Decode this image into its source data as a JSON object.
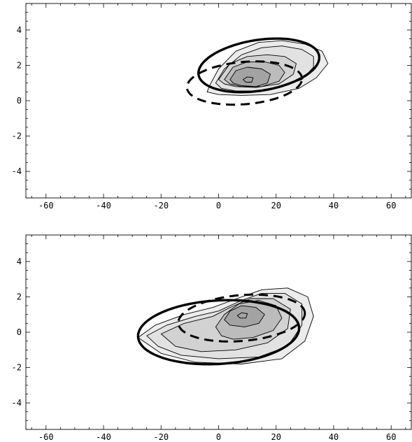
{
  "chart_data": [
    {
      "type": "contour",
      "xlabel": "",
      "ylabel": "",
      "xlim": [
        -67,
        67
      ],
      "ylim": [
        -5.5,
        5.5
      ],
      "x_ticks": [
        -60,
        -40,
        -20,
        0,
        20,
        40,
        60
      ],
      "y_ticks": [
        -4,
        -2,
        0,
        2,
        4
      ],
      "x_tick_labels": [
        "-60",
        "-40",
        "-20",
        "0",
        "20",
        "40",
        "60"
      ],
      "y_tick_labels": [
        "-4",
        "-2",
        "0",
        "2",
        "4"
      ],
      "contour_levels": [
        {
          "fill": "#ececec",
          "points": [
            [
              -3,
              0.9
            ],
            [
              0,
              1.8
            ],
            [
              6,
              2.8
            ],
            [
              14,
              3.3
            ],
            [
              22,
              3.4
            ],
            [
              30,
              3.2
            ],
            [
              36,
              2.8
            ],
            [
              38,
              2.1
            ],
            [
              34,
              1.3
            ],
            [
              28,
              0.7
            ],
            [
              18,
              0.35
            ],
            [
              8,
              0.3
            ],
            [
              0,
              0.35
            ],
            [
              -4,
              0.5
            ]
          ]
        },
        {
          "fill": "#e2e2e2",
          "points": [
            [
              -1,
              1.0
            ],
            [
              2,
              1.8
            ],
            [
              8,
              2.6
            ],
            [
              15,
              3.0
            ],
            [
              22,
              3.1
            ],
            [
              29,
              2.9
            ],
            [
              33,
              2.5
            ],
            [
              33,
              1.9
            ],
            [
              29,
              1.2
            ],
            [
              22,
              0.8
            ],
            [
              14,
              0.55
            ],
            [
              6,
              0.55
            ],
            [
              1,
              0.7
            ]
          ]
        },
        {
          "fill": "#d2d2d2",
          "points": [
            [
              0,
              1.2
            ],
            [
              4,
              2.1
            ],
            [
              10,
              2.5
            ],
            [
              17,
              2.6
            ],
            [
              23,
              2.5
            ],
            [
              27,
              2.1
            ],
            [
              26,
              1.5
            ],
            [
              21,
              0.95
            ],
            [
              13,
              0.75
            ],
            [
              6,
              0.8
            ],
            [
              2,
              0.95
            ]
          ]
        },
        {
          "fill": "#bcbcbc",
          "points": [
            [
              2,
              1.2
            ],
            [
              5,
              1.9
            ],
            [
              10,
              2.2
            ],
            [
              16,
              2.2
            ],
            [
              21,
              2.0
            ],
            [
              23,
              1.6
            ],
            [
              21,
              1.1
            ],
            [
              15,
              0.8
            ],
            [
              8,
              0.8
            ],
            [
              4,
              0.95
            ]
          ]
        },
        {
          "fill": "#a3a3a3",
          "points": [
            [
              4,
              1.2
            ],
            [
              6,
              1.7
            ],
            [
              10,
              1.9
            ],
            [
              15,
              1.8
            ],
            [
              18,
              1.5
            ],
            [
              17,
              1.0
            ],
            [
              13,
              0.8
            ],
            [
              8,
              0.85
            ],
            [
              5,
              1.0
            ]
          ]
        },
        {
          "fill": "#a3a3a3",
          "points": [
            [
              8.5,
              1.2
            ],
            [
              10,
              1.35
            ],
            [
              12,
              1.3
            ],
            [
              11.5,
              1.05
            ],
            [
              9.5,
              1.05
            ]
          ]
        }
      ],
      "solid_ellipse": {
        "center": [
          14,
          2.0
        ],
        "rx": 21,
        "ry": 1.45,
        "tilt_slope": 0.021
      },
      "dashed_ellipse": {
        "center": [
          9,
          1.0
        ],
        "rx": 20,
        "ry": 1.2,
        "tilt_slope": 0.012
      }
    },
    {
      "type": "contour",
      "xlabel": "",
      "ylabel": "",
      "xlim": [
        -67,
        67
      ],
      "ylim": [
        -5.5,
        5.5
      ],
      "x_ticks": [
        -60,
        -40,
        -20,
        0,
        20,
        40,
        60
      ],
      "y_ticks": [
        -4,
        -2,
        0,
        2,
        4
      ],
      "x_tick_labels": [
        "-60",
        "-40",
        "-20",
        "0",
        "20",
        "40",
        "60"
      ],
      "y_tick_labels": [
        "-4",
        "-2",
        "0",
        "2",
        "4"
      ],
      "contour_levels": [
        {
          "fill": "#ececec",
          "points": [
            [
              -28,
              -0.3
            ],
            [
              -22,
              0.4
            ],
            [
              -12,
              1.0
            ],
            [
              -2,
              1.4
            ],
            [
              8,
              2.0
            ],
            [
              15,
              2.4
            ],
            [
              24,
              2.5
            ],
            [
              31,
              2.0
            ],
            [
              33,
              0.9
            ],
            [
              30,
              -0.5
            ],
            [
              22,
              -1.5
            ],
            [
              8,
              -1.8
            ],
            [
              -8,
              -1.7
            ],
            [
              -20,
              -1.2
            ]
          ]
        },
        {
          "fill": "#e2e2e2",
          "points": [
            [
              -25,
              -0.2
            ],
            [
              -18,
              0.4
            ],
            [
              -8,
              0.9
            ],
            [
              0,
              1.2
            ],
            [
              8,
              1.8
            ],
            [
              15,
              2.2
            ],
            [
              23,
              2.2
            ],
            [
              29,
              1.6
            ],
            [
              29,
              0.4
            ],
            [
              24,
              -0.8
            ],
            [
              14,
              -1.4
            ],
            [
              0,
              -1.5
            ],
            [
              -13,
              -1.3
            ],
            [
              -21,
              -0.8
            ]
          ]
        },
        {
          "fill": "#d2d2d2",
          "points": [
            [
              -20,
              -0.1
            ],
            [
              -12,
              0.5
            ],
            [
              -2,
              0.9
            ],
            [
              4,
              1.4
            ],
            [
              11,
              1.9
            ],
            [
              19,
              1.9
            ],
            [
              25,
              1.3
            ],
            [
              24,
              0.2
            ],
            [
              17,
              -0.6
            ],
            [
              6,
              -1.0
            ],
            [
              -6,
              -1.1
            ],
            [
              -15,
              -0.8
            ]
          ]
        },
        {
          "fill": "#bcbcbc",
          "points": [
            [
              -1,
              0.3
            ],
            [
              2,
              1.0
            ],
            [
              7,
              1.6
            ],
            [
              14,
              1.8
            ],
            [
              20,
              1.5
            ],
            [
              22,
              0.8
            ],
            [
              19,
              0.1
            ],
            [
              12,
              -0.3
            ],
            [
              5,
              -0.4
            ],
            [
              1,
              -0.2
            ]
          ]
        },
        {
          "fill": "#a3a3a3",
          "points": [
            [
              2,
              0.7
            ],
            [
              4,
              1.2
            ],
            [
              8,
              1.5
            ],
            [
              13,
              1.4
            ],
            [
              16,
              1.0
            ],
            [
              14,
              0.5
            ],
            [
              9,
              0.3
            ],
            [
              4,
              0.4
            ]
          ]
        },
        {
          "fill": "#a3a3a3",
          "points": [
            [
              6.5,
              0.95
            ],
            [
              8,
              1.1
            ],
            [
              10,
              1.05
            ],
            [
              9.5,
              0.8
            ],
            [
              7.5,
              0.8
            ]
          ]
        }
      ],
      "solid_ellipse": {
        "center": [
          0,
          0.0
        ],
        "rx": 28,
        "ry": 1.8,
        "tilt_slope": 0.008
      },
      "dashed_ellipse": {
        "center": [
          8,
          0.8
        ],
        "rx": 22,
        "ry": 1.3,
        "tilt_slope": 0.012
      }
    }
  ]
}
